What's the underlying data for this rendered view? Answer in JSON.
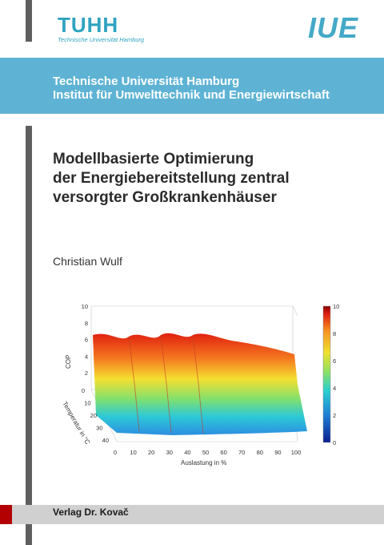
{
  "logos": {
    "tuhh_text": "TUHH",
    "tuhh_subtitle": "Technische Universität Hamburg",
    "iue_text": "IUE"
  },
  "institution": {
    "line1": "Technische Universität Hamburg",
    "line2": "Institut für Umwelttechnik und Energiewirtschaft"
  },
  "book": {
    "title_lines": [
      "Modellbasierte Optimierung",
      "der Energiebereitstellung zentral",
      "versorgter Großkrankenhäuser"
    ],
    "author": "Christian Wulf",
    "publisher": "Verlag Dr. Kovač"
  },
  "chart_data": {
    "type": "surface",
    "xlabel": "Auslastung in %",
    "ylabel": "Temperatur in °C",
    "zlabel": "COP",
    "x_ticks": [
      0,
      10,
      20,
      30,
      40,
      50,
      60,
      70,
      80,
      90,
      100
    ],
    "y_ticks": [
      0,
      10,
      20,
      30,
      40
    ],
    "z_ticks": [
      0,
      2,
      4,
      6,
      8,
      10
    ],
    "colorbar_ticks": [
      0,
      2,
      4,
      6,
      8,
      10
    ],
    "colors": [
      "#0a1f8f",
      "#1f7fd6",
      "#2bd0d0",
      "#8fe060",
      "#f0e030",
      "#f59020",
      "#e02010",
      "#8b0000"
    ]
  }
}
